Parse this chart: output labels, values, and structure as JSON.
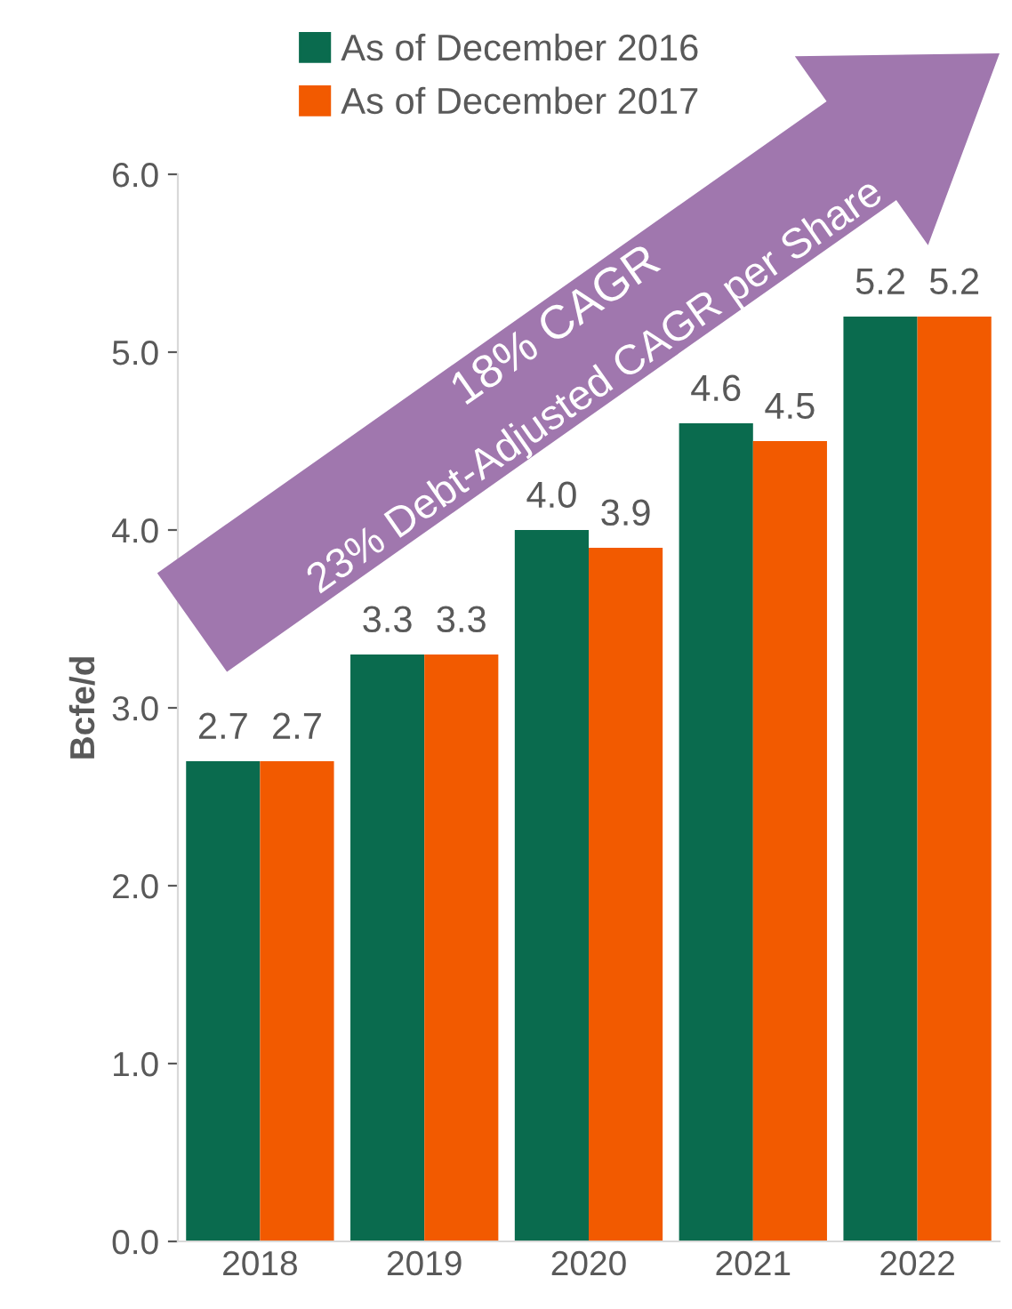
{
  "chart_data": {
    "type": "bar",
    "ylabel": "Bcfe/d",
    "categories": [
      "2018",
      "2019",
      "2020",
      "2021",
      "2022"
    ],
    "series": [
      {
        "name": "As of December 2016",
        "color": "#0a6b4e",
        "values": [
          2.7,
          3.3,
          4.0,
          4.6,
          5.2
        ],
        "value_labels": [
          "2.7",
          "3.3",
          "4.0",
          "4.6",
          "5.2"
        ]
      },
      {
        "name": "As of December 2017",
        "color": "#f25a00",
        "values": [
          2.7,
          3.3,
          3.9,
          4.5,
          5.2
        ],
        "value_labels": [
          "2.7",
          "3.3",
          "3.9",
          "4.5",
          "5.2"
        ]
      }
    ],
    "ylim": [
      0,
      6
    ],
    "yticks": [
      {
        "value": 0,
        "label": "0.0"
      },
      {
        "value": 1,
        "label": "1.0"
      },
      {
        "value": 2,
        "label": "2.0"
      },
      {
        "value": 3,
        "label": "3.0"
      },
      {
        "value": 4,
        "label": "4.0"
      },
      {
        "value": 5,
        "label": "5.0"
      },
      {
        "value": 6,
        "label": "6.0"
      }
    ],
    "grid": false,
    "legend": "top",
    "annotations": [
      "18% CAGR",
      "23% Debt-Adjusted CAGR per Share"
    ]
  }
}
